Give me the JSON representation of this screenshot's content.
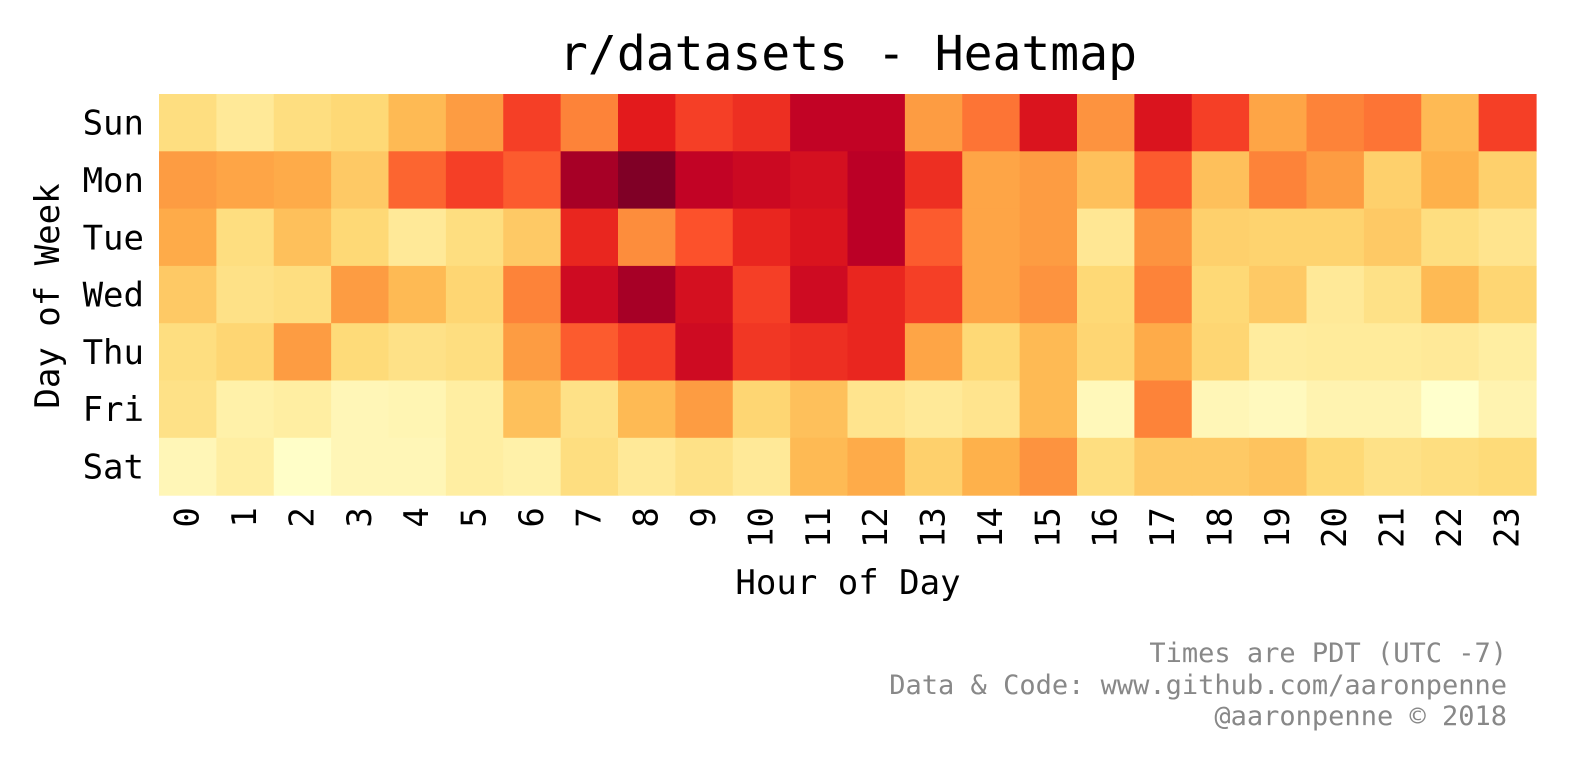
{
  "chart_data": {
    "type": "heatmap",
    "title": "r/datasets - Heatmap",
    "xlabel": "Hour of Day",
    "ylabel": "Day of Week",
    "x_categories": [
      "0",
      "1",
      "2",
      "3",
      "4",
      "5",
      "6",
      "7",
      "8",
      "9",
      "10",
      "11",
      "12",
      "13",
      "14",
      "15",
      "16",
      "17",
      "18",
      "19",
      "20",
      "21",
      "22",
      "23"
    ],
    "y_categories": [
      "Sun",
      "Mon",
      "Tue",
      "Wed",
      "Thu",
      "Fri",
      "Sat"
    ],
    "value_range": [
      0,
      1
    ],
    "colormap": "YlOrRd",
    "colorbar": false,
    "grid": false,
    "values": [
      [
        0.22,
        0.15,
        0.22,
        0.25,
        0.35,
        0.45,
        0.66,
        0.52,
        0.75,
        0.66,
        0.7,
        0.86,
        0.86,
        0.45,
        0.55,
        0.78,
        0.48,
        0.78,
        0.66,
        0.42,
        0.52,
        0.55,
        0.35,
        0.66
      ],
      [
        0.45,
        0.42,
        0.4,
        0.3,
        0.58,
        0.66,
        0.6,
        0.92,
        1.0,
        0.86,
        0.83,
        0.8,
        0.88,
        0.7,
        0.42,
        0.45,
        0.33,
        0.6,
        0.33,
        0.52,
        0.45,
        0.28,
        0.38,
        0.28
      ],
      [
        0.4,
        0.22,
        0.33,
        0.25,
        0.15,
        0.22,
        0.3,
        0.72,
        0.5,
        0.62,
        0.72,
        0.78,
        0.88,
        0.6,
        0.42,
        0.45,
        0.16,
        0.48,
        0.28,
        0.27,
        0.27,
        0.3,
        0.22,
        0.18
      ],
      [
        0.3,
        0.2,
        0.22,
        0.45,
        0.35,
        0.26,
        0.52,
        0.82,
        0.92,
        0.8,
        0.66,
        0.82,
        0.72,
        0.66,
        0.42,
        0.48,
        0.25,
        0.52,
        0.25,
        0.3,
        0.15,
        0.2,
        0.35,
        0.26
      ],
      [
        0.22,
        0.26,
        0.45,
        0.24,
        0.2,
        0.22,
        0.45,
        0.6,
        0.66,
        0.82,
        0.68,
        0.7,
        0.72,
        0.42,
        0.25,
        0.35,
        0.26,
        0.4,
        0.26,
        0.13,
        0.14,
        0.14,
        0.15,
        0.12
      ],
      [
        0.2,
        0.1,
        0.12,
        0.06,
        0.07,
        0.12,
        0.33,
        0.2,
        0.35,
        0.45,
        0.26,
        0.33,
        0.18,
        0.15,
        0.18,
        0.35,
        0.05,
        0.52,
        0.06,
        0.04,
        0.08,
        0.08,
        0.0,
        0.08
      ],
      [
        0.06,
        0.12,
        0.01,
        0.06,
        0.06,
        0.12,
        0.1,
        0.22,
        0.15,
        0.2,
        0.15,
        0.35,
        0.4,
        0.28,
        0.38,
        0.48,
        0.22,
        0.3,
        0.3,
        0.32,
        0.25,
        0.2,
        0.22,
        0.24
      ]
    ]
  },
  "footnotes": [
    "Times are PDT (UTC -7)",
    "Data & Code: www.github.com/aaronpenne",
    "@aaronpenne © 2018"
  ],
  "colors": {
    "footnote": "#888888",
    "text": "#000000"
  }
}
